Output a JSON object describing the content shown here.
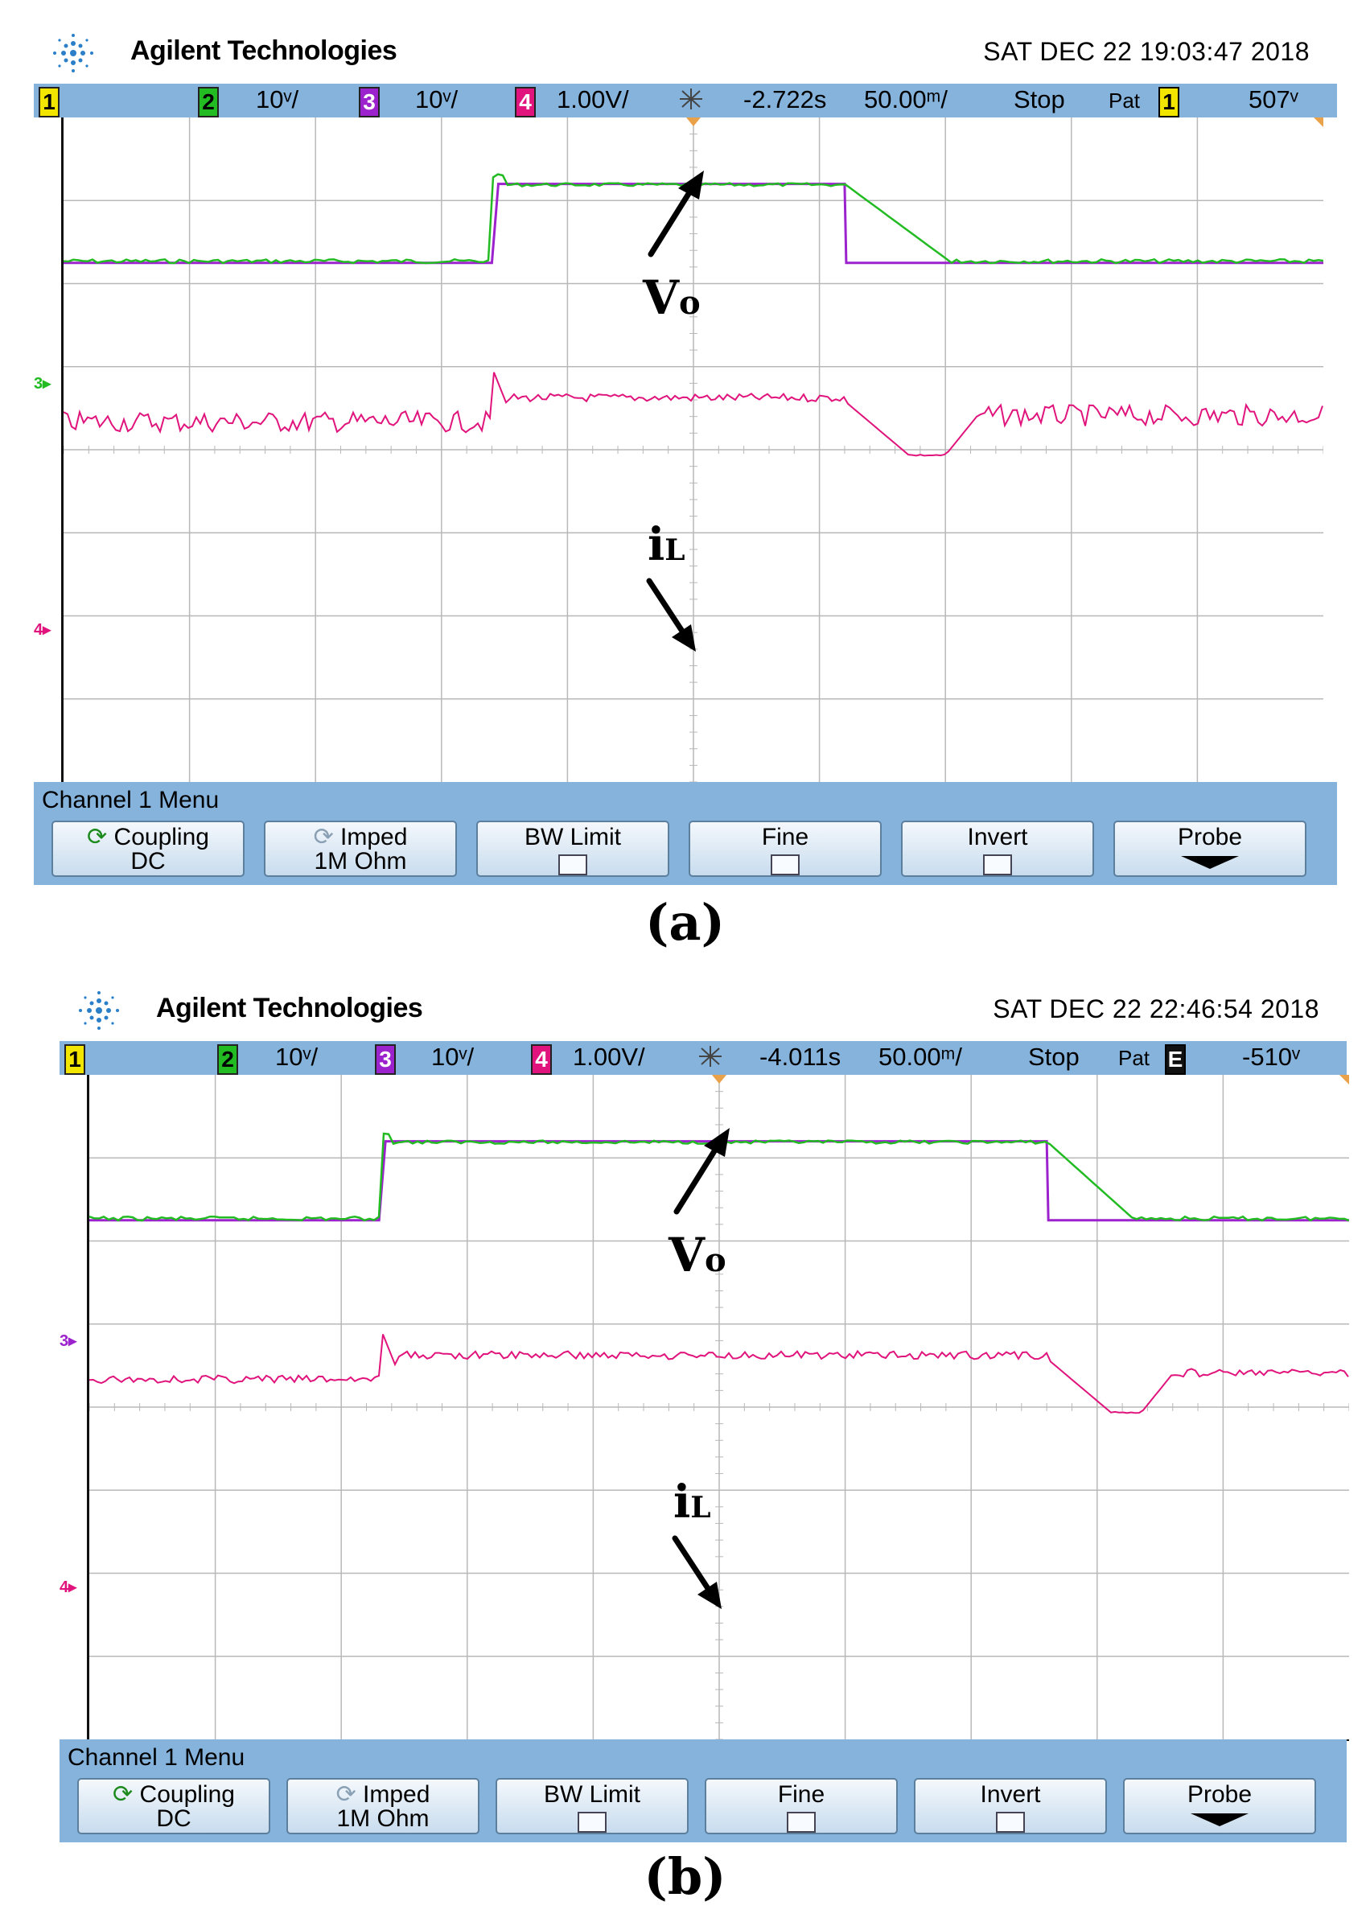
{
  "brand_name": "Agilent Technologies",
  "colors": {
    "status_bar": "#85b3dc",
    "ch1": "#f2e600",
    "ch2": "#22bb22",
    "ch3": "#9b22cc",
    "ch4": "#e0147c",
    "grid": "#b8b8b8",
    "trigger_marker": "#e9a14a"
  },
  "panels": [
    {
      "caption": "(a)",
      "datetime": "SAT DEC 22 19:03:47 2018",
      "status": {
        "ch1": "1",
        "ch2": "2",
        "ch2_scale": "10ᵛ/",
        "ch3": "3",
        "ch3_scale": "10ᵛ/",
        "ch4": "4",
        "ch4_scale": "1.00V/",
        "trigger_icon": "trigger-burst-icon",
        "delay": "-2.722s",
        "timebase": "50.00ᵐ/",
        "run_state": "Stop",
        "trigger_mode": "Pat",
        "trigger_source": "1",
        "trigger_level": "507ᵛ"
      },
      "labels": {
        "vo": "V",
        "vo_sub": "o",
        "il": "i",
        "il_sub": "L"
      },
      "markers": {
        "ch3_ground": "3",
        "ch4_ground": "4"
      },
      "traces": {
        "vo_low_div": 1.75,
        "vo_high_div": 2.25,
        "il_base_div": 3.2,
        "il_dip_div": 3.95,
        "step_up_div": 3.4,
        "step_down_div": 6.2,
        "green_ramp_end_div": 7.05,
        "il_recover_div": 7.0
      },
      "menu": {
        "title": "Channel 1  Menu",
        "softkeys": [
          {
            "line1": "Coupling",
            "line2": "DC",
            "icon": "rotate-arrow-icon",
            "enabled": true
          },
          {
            "line1": "Imped",
            "line2": "1M Ohm",
            "icon": "rotate-arrow-icon",
            "enabled": false
          },
          {
            "line1": "BW Limit",
            "checkbox": true
          },
          {
            "line1": "Fine",
            "checkbox": true
          },
          {
            "line1": "Invert",
            "checkbox": true
          },
          {
            "line1": "Probe",
            "icon": "down-arrow-icon"
          }
        ]
      }
    },
    {
      "caption": "(b)",
      "datetime": "SAT DEC 22 22:46:54 2018",
      "status": {
        "ch1": "1",
        "ch2": "2",
        "ch2_scale": "10ᵛ/",
        "ch3": "3",
        "ch3_scale": "10ᵛ/",
        "ch4": "4",
        "ch4_scale": "1.00V/",
        "trigger_icon": "trigger-burst-icon",
        "delay": "-4.011s",
        "timebase": "50.00ᵐ/",
        "run_state": "Stop",
        "trigger_mode": "Pat",
        "trigger_source": "E",
        "trigger_level": "-510ᵛ"
      },
      "labels": {
        "vo": "V",
        "vo_sub": "o",
        "il": "i",
        "il_sub": "L"
      },
      "markers": {
        "ch3_ground": "3",
        "ch4_ground": "4"
      },
      "traces": {
        "vo_low_div": 1.75,
        "vo_high_div": 2.25,
        "il_base_div": 3.2,
        "il_dip_div": 3.95,
        "step_up_div": 2.3,
        "step_down_div": 7.6,
        "green_ramp_end_div": 8.3,
        "il_recover_div": 8.35
      },
      "menu": {
        "title": "Channel 1  Menu",
        "softkeys": [
          {
            "line1": "Coupling",
            "line2": "DC",
            "icon": "rotate-arrow-icon",
            "enabled": true
          },
          {
            "line1": "Imped",
            "line2": "1M Ohm",
            "icon": "rotate-arrow-icon",
            "enabled": false
          },
          {
            "line1": "BW Limit",
            "checkbox": true
          },
          {
            "line1": "Fine",
            "checkbox": true
          },
          {
            "line1": "Invert",
            "checkbox": true
          },
          {
            "line1": "Probe",
            "icon": "down-arrow-icon"
          }
        ]
      }
    }
  ]
}
